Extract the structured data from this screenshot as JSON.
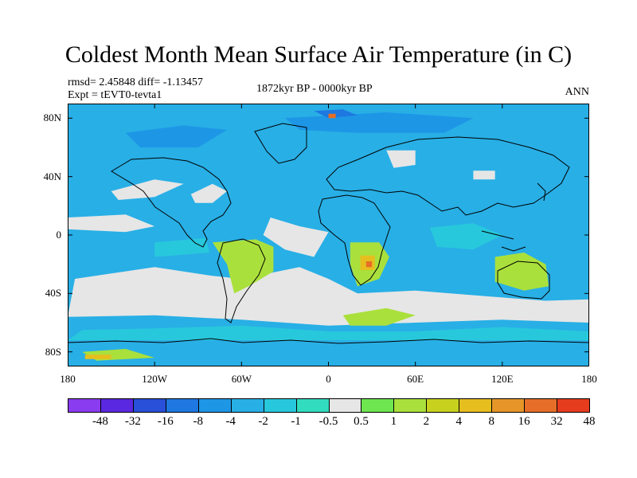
{
  "title": "Coldest Month Mean Surface Air Temperature (in C)",
  "stats": "rmsd= 2.45848 diff= -1.13457",
  "experiment": "Expt = tEVT0-tevta1",
  "period": "1872kyr BP - 0000kyr BP",
  "season": "ANN",
  "y_ticks": [
    {
      "label": "80N",
      "lat": 80
    },
    {
      "label": "40N",
      "lat": 40
    },
    {
      "label": "0",
      "lat": 0
    },
    {
      "label": "40S",
      "lat": -40
    },
    {
      "label": "80S",
      "lat": -80
    }
  ],
  "x_ticks": [
    {
      "label": "180",
      "lon": -180
    },
    {
      "label": "120W",
      "lon": -120
    },
    {
      "label": "60W",
      "lon": -60
    },
    {
      "label": "0",
      "lon": 0
    },
    {
      "label": "60E",
      "lon": 60
    },
    {
      "label": "120E",
      "lon": 120
    },
    {
      "label": "180",
      "lon": 180
    }
  ],
  "lat_range": [
    -90,
    90
  ],
  "lon_range": [
    -180,
    180
  ],
  "colorbar": {
    "colors": [
      "#8a3cf0",
      "#5a28e0",
      "#2850d8",
      "#1e78e0",
      "#1e96e6",
      "#28afe6",
      "#28c8dc",
      "#32dcbe",
      "#e6e6e6",
      "#6ee650",
      "#aae03c",
      "#c8d21e",
      "#e6be1e",
      "#e69628",
      "#e66e28",
      "#e63c1e"
    ],
    "labels": [
      "-48",
      "-32",
      "-16",
      "-8",
      "-4",
      "-2",
      "-1",
      "-0.5",
      "0.5",
      "1",
      "2",
      "4",
      "8",
      "16",
      "32",
      "48"
    ]
  },
  "chart_data": {
    "type": "heatmap",
    "title": "Coldest Month Mean Surface Air Temperature (in C)",
    "subtitle": "1872kyr BP - 0000kyr BP",
    "xlabel": "",
    "ylabel": "",
    "xlim": [
      -180,
      180
    ],
    "ylim": [
      -90,
      90
    ],
    "levels": [
      -48,
      -32,
      -16,
      -8,
      -4,
      -2,
      -1,
      -0.5,
      0.5,
      1,
      2,
      4,
      8,
      16,
      32,
      48
    ],
    "background_level_color": "#28afe6",
    "regions": [
      {
        "name": "near-zero",
        "color": "#e6e6e6",
        "pts": [
          [
            -175,
            -30
          ],
          [
            -120,
            -22
          ],
          [
            -80,
            -28
          ],
          [
            -60,
            -30
          ],
          [
            -20,
            -22
          ],
          [
            0,
            -30
          ],
          [
            20,
            -40
          ],
          [
            60,
            -38
          ],
          [
            110,
            -42
          ],
          [
            150,
            -45
          ],
          [
            180,
            -44
          ],
          [
            180,
            -60
          ],
          [
            120,
            -58
          ],
          [
            60,
            -60
          ],
          [
            0,
            -62
          ],
          [
            -60,
            -58
          ],
          [
            -120,
            -55
          ],
          [
            -180,
            -56
          ]
        ]
      },
      {
        "name": "near-zero",
        "color": "#e6e6e6",
        "pts": [
          [
            -40,
            12
          ],
          [
            -20,
            6
          ],
          [
            0,
            2
          ],
          [
            -10,
            -15
          ],
          [
            -30,
            -10
          ],
          [
            -45,
            0
          ]
        ]
      },
      {
        "name": "near-zero",
        "color": "#e6e6e6",
        "pts": [
          [
            -150,
            30
          ],
          [
            -120,
            38
          ],
          [
            -100,
            35
          ],
          [
            -120,
            26
          ],
          [
            -145,
            24
          ]
        ]
      },
      {
        "name": "near-zero",
        "color": "#e6e6e6",
        "pts": [
          [
            -95,
            28
          ],
          [
            -80,
            35
          ],
          [
            -70,
            30
          ],
          [
            -80,
            22
          ],
          [
            -92,
            22
          ]
        ]
      },
      {
        "name": "near-zero",
        "color": "#e6e6e6",
        "pts": [
          [
            40,
            58
          ],
          [
            60,
            58
          ],
          [
            60,
            48
          ],
          [
            45,
            46
          ]
        ]
      },
      {
        "name": "near-zero",
        "color": "#e6e6e6",
        "pts": [
          [
            100,
            44
          ],
          [
            115,
            44
          ],
          [
            115,
            38
          ],
          [
            100,
            38
          ]
        ]
      },
      {
        "name": "near-zero",
        "color": "#e6e6e6",
        "pts": [
          [
            -180,
            12
          ],
          [
            -140,
            14
          ],
          [
            -120,
            6
          ],
          [
            -140,
            2
          ],
          [
            -180,
            4
          ]
        ]
      },
      {
        "name": "warm-1-2",
        "color": "#aae03c",
        "pts": [
          [
            -80,
            -5
          ],
          [
            -50,
            -3
          ],
          [
            -38,
            -8
          ],
          [
            -38,
            -25
          ],
          [
            -55,
            -35
          ],
          [
            -65,
            -40
          ],
          [
            -70,
            -20
          ]
        ]
      },
      {
        "name": "warm-1-2",
        "color": "#aae03c",
        "pts": [
          [
            15,
            -5
          ],
          [
            35,
            -5
          ],
          [
            42,
            -15
          ],
          [
            35,
            -30
          ],
          [
            20,
            -35
          ],
          [
            15,
            -20
          ]
        ]
      },
      {
        "name": "warm-1-2",
        "color": "#aae03c",
        "pts": [
          [
            115,
            -15
          ],
          [
            135,
            -12
          ],
          [
            150,
            -20
          ],
          [
            152,
            -35
          ],
          [
            135,
            -38
          ],
          [
            115,
            -32
          ]
        ]
      },
      {
        "name": "warm-1-2",
        "color": "#aae03c",
        "pts": [
          [
            10,
            -55
          ],
          [
            40,
            -50
          ],
          [
            60,
            -55
          ],
          [
            40,
            -62
          ],
          [
            15,
            -62
          ]
        ]
      },
      {
        "name": "warm-1-2",
        "color": "#aae03c",
        "pts": [
          [
            -170,
            -80
          ],
          [
            -140,
            -78
          ],
          [
            -120,
            -84
          ],
          [
            -160,
            -86
          ]
        ]
      },
      {
        "name": "warm-4-8",
        "color": "#e6be1e",
        "pts": [
          [
            22,
            -14
          ],
          [
            32,
            -14
          ],
          [
            32,
            -24
          ],
          [
            22,
            -24
          ]
        ]
      },
      {
        "name": "warm-4-8",
        "color": "#e6be1e",
        "pts": [
          [
            -168,
            -82
          ],
          [
            -150,
            -82
          ],
          [
            -150,
            -85
          ],
          [
            -168,
            -85
          ]
        ]
      },
      {
        "name": "warm-16",
        "color": "#e66e28",
        "pts": [
          [
            26,
            -18
          ],
          [
            30,
            -18
          ],
          [
            30,
            -22
          ],
          [
            26,
            -22
          ]
        ]
      },
      {
        "name": "cold--1",
        "color": "#28c8dc",
        "pts": [
          [
            -120,
            -5
          ],
          [
            -85,
            -2
          ],
          [
            -82,
            -12
          ],
          [
            -120,
            -15
          ]
        ]
      },
      {
        "name": "cold--1",
        "color": "#28c8dc",
        "pts": [
          [
            -170,
            -65
          ],
          [
            -120,
            -64
          ],
          [
            -60,
            -62
          ],
          [
            0,
            -66
          ],
          [
            60,
            -66
          ],
          [
            120,
            -63
          ],
          [
            180,
            -66
          ],
          [
            180,
            -72
          ],
          [
            -180,
            -72
          ]
        ]
      },
      {
        "name": "cold--4",
        "color": "#1e96e6",
        "pts": [
          [
            -30,
            80
          ],
          [
            40,
            84
          ],
          [
            100,
            80
          ],
          [
            80,
            70
          ],
          [
            20,
            70
          ],
          [
            -20,
            72
          ]
        ]
      },
      {
        "name": "cold--4",
        "color": "#1e96e6",
        "pts": [
          [
            -140,
            70
          ],
          [
            -100,
            75
          ],
          [
            -70,
            72
          ],
          [
            -90,
            60
          ],
          [
            -130,
            60
          ]
        ]
      },
      {
        "name": "cold--8",
        "color": "#1e78e0",
        "pts": [
          [
            -10,
            85
          ],
          [
            10,
            86
          ],
          [
            20,
            82
          ],
          [
            0,
            80
          ]
        ]
      },
      {
        "name": "cold--1",
        "color": "#28c8dc",
        "pts": [
          [
            70,
            5
          ],
          [
            100,
            8
          ],
          [
            120,
            0
          ],
          [
            100,
            -10
          ],
          [
            75,
            -8
          ]
        ]
      },
      {
        "name": "warm-orange",
        "color": "#e66e28",
        "pts": [
          [
            0,
            83
          ],
          [
            5,
            83
          ],
          [
            5,
            80
          ],
          [
            0,
            80
          ]
        ]
      }
    ]
  }
}
